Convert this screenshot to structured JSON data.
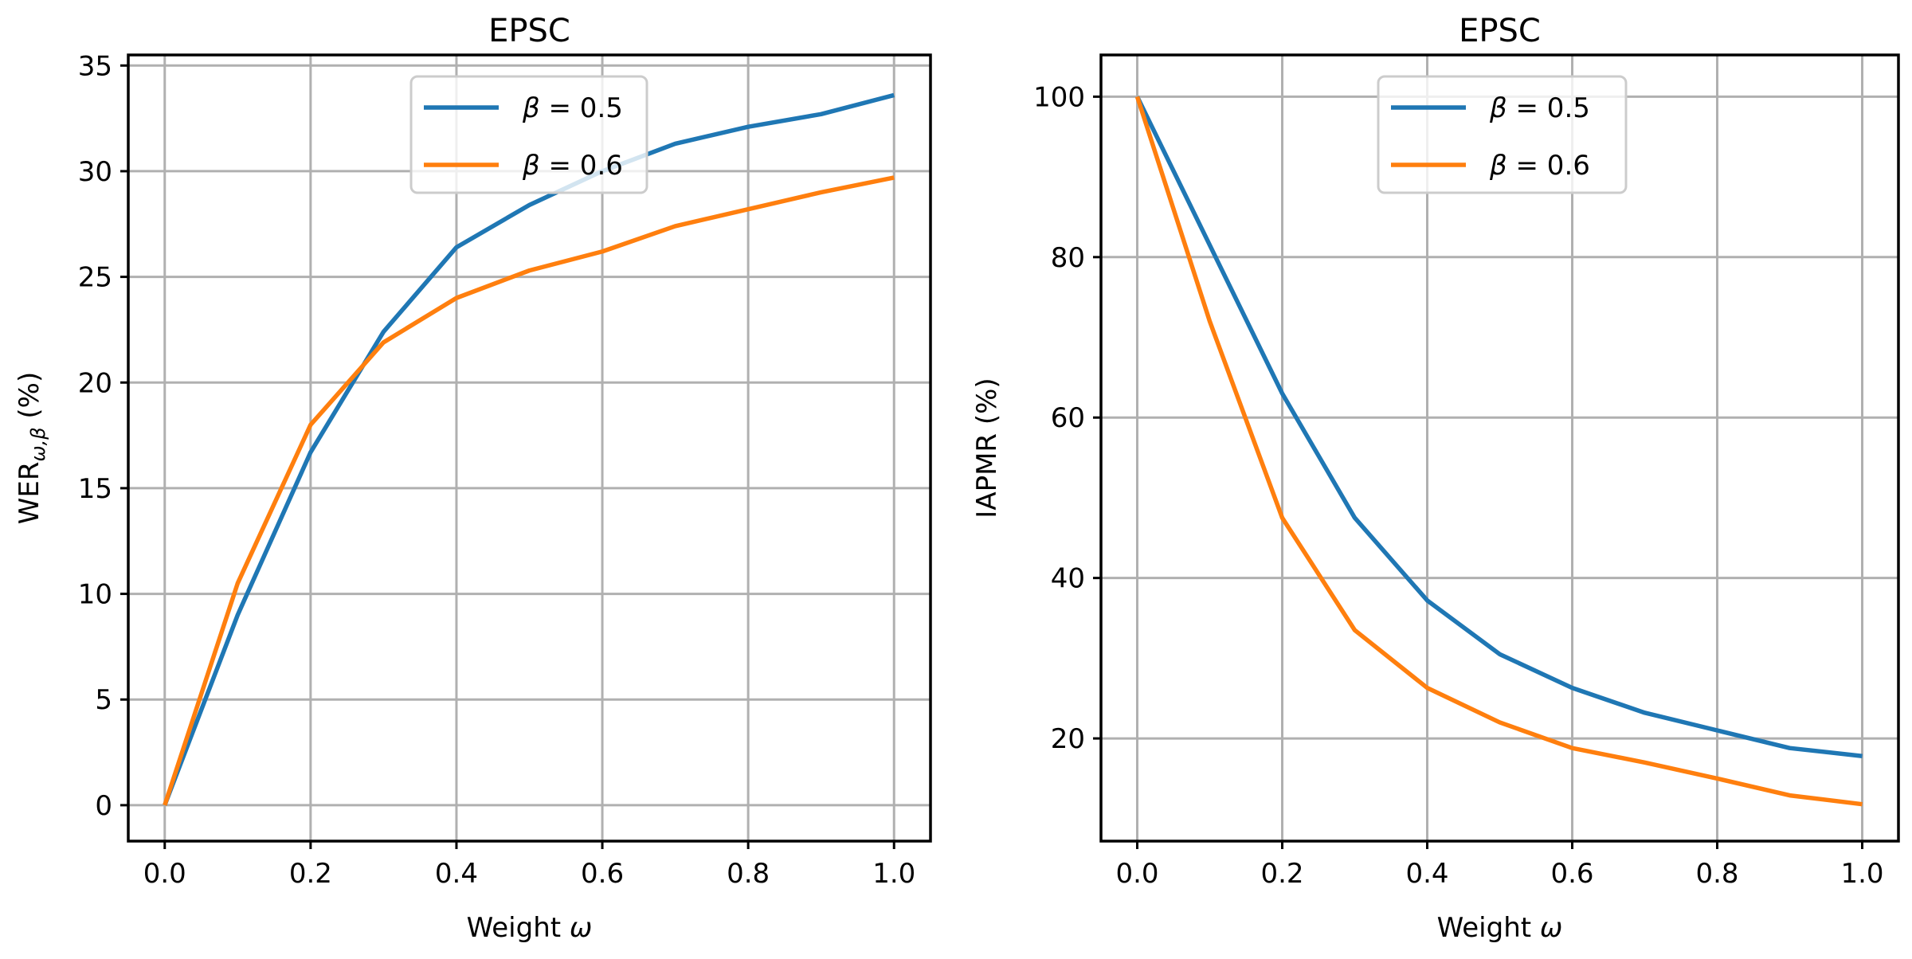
{
  "chart_data": [
    {
      "type": "line",
      "title": "EPSC",
      "xlabel": "Weight",
      "xlabel_symbol": "ω",
      "ylabel": "WER",
      "ylabel_sub": "ω,β",
      "ylabel_suffix": " (%)",
      "xlim": [
        -0.05,
        1.05
      ],
      "ylim": [
        -1.7,
        35.5
      ],
      "xticks": [
        0.0,
        0.2,
        0.4,
        0.6,
        0.8,
        1.0
      ],
      "xtick_labels": [
        "0.0",
        "0.2",
        "0.4",
        "0.6",
        "0.8",
        "1.0"
      ],
      "yticks": [
        0,
        5,
        10,
        15,
        20,
        25,
        30,
        35
      ],
      "ytick_labels": [
        "0",
        "5",
        "10",
        "15",
        "20",
        "25",
        "30",
        "35"
      ],
      "grid": true,
      "legend_position": "top-center",
      "x": [
        0.0,
        0.1,
        0.2,
        0.3,
        0.4,
        0.5,
        0.6,
        0.7,
        0.8,
        0.9,
        1.0
      ],
      "series": [
        {
          "name": "β = 0.5",
          "name_symbol": "β",
          "name_value": "= 0.5",
          "color": "#1f77b4",
          "values": [
            0,
            9.0,
            16.7,
            22.4,
            26.4,
            28.4,
            30.0,
            31.3,
            32.1,
            32.7,
            33.6
          ]
        },
        {
          "name": "β = 0.6",
          "name_symbol": "β",
          "name_value": "= 0.6",
          "color": "#ff7f0e",
          "values": [
            0,
            10.5,
            18.0,
            21.9,
            24.0,
            25.3,
            26.2,
            27.4,
            28.2,
            29.0,
            29.7
          ]
        }
      ]
    },
    {
      "type": "line",
      "title": "EPSC",
      "xlabel": "Weight",
      "xlabel_symbol": "ω",
      "ylabel": "IAPMR (%)",
      "ylabel_sub": "",
      "ylabel_suffix": "",
      "xlim": [
        -0.05,
        1.05
      ],
      "ylim": [
        7.2,
        105.2
      ],
      "xticks": [
        0.0,
        0.2,
        0.4,
        0.6,
        0.8,
        1.0
      ],
      "xtick_labels": [
        "0.0",
        "0.2",
        "0.4",
        "0.6",
        "0.8",
        "1.0"
      ],
      "yticks": [
        20,
        40,
        60,
        80,
        100
      ],
      "ytick_labels": [
        "20",
        "40",
        "60",
        "80",
        "100"
      ],
      "grid": true,
      "legend_position": "top-center",
      "x": [
        0.0,
        0.1,
        0.2,
        0.3,
        0.4,
        0.5,
        0.6,
        0.7,
        0.8,
        0.9,
        1.0
      ],
      "series": [
        {
          "name": "β = 0.5",
          "name_symbol": "β",
          "name_value": "= 0.5",
          "color": "#1f77b4",
          "values": [
            100,
            81.5,
            63.0,
            47.5,
            37.2,
            30.5,
            26.3,
            23.2,
            21.0,
            18.8,
            17.8
          ]
        },
        {
          "name": "β = 0.6",
          "name_symbol": "β",
          "name_value": "= 0.6",
          "color": "#ff7f0e",
          "values": [
            100,
            72.0,
            47.5,
            33.5,
            26.3,
            22.0,
            18.8,
            17.0,
            15.0,
            12.9,
            11.8
          ]
        }
      ]
    }
  ]
}
